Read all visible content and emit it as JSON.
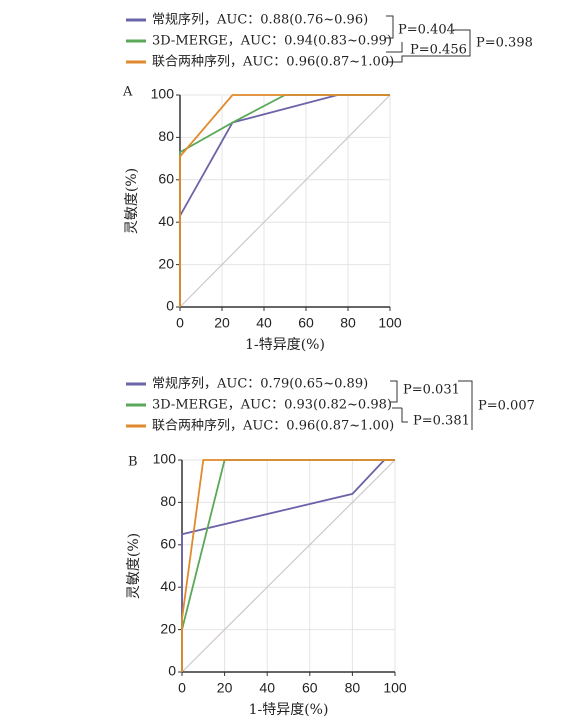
{
  "chart_data": [
    {
      "type": "line",
      "panel": "A",
      "xlabel": "1-特异度(%)",
      "ylabel": "灵敏度(%)",
      "xlim": [
        0,
        100
      ],
      "ylim": [
        0,
        100
      ],
      "xticks": [
        0,
        20,
        40,
        60,
        80,
        100
      ],
      "yticks": [
        0,
        20,
        40,
        60,
        80,
        100
      ],
      "grid": true,
      "series": [
        {
          "name": "常规序列，AUC：0.88(0.76~0.96)",
          "color": "#6b63a8",
          "x": [
            0,
            0,
            25,
            75,
            100
          ],
          "values": [
            0,
            43,
            87,
            100,
            100
          ]
        },
        {
          "name": "3D-MERGE，AUC：0.94(0.83~0.99)",
          "color": "#5aa858",
          "x": [
            0,
            0,
            25,
            50,
            100
          ],
          "values": [
            0,
            73,
            87,
            100,
            100
          ]
        },
        {
          "name": "联合两种序列，AUC：0.96(0.87~1.00)",
          "color": "#e08a2c",
          "x": [
            0,
            0,
            25,
            100
          ],
          "values": [
            0,
            71,
            100,
            100
          ]
        }
      ],
      "annotations": [
        "P=0.404",
        "P=0.456",
        "P=0.398"
      ]
    },
    {
      "type": "line",
      "panel": "B",
      "xlabel": "1-特异度(%)",
      "ylabel": "灵敏度(%)",
      "xlim": [
        0,
        100
      ],
      "ylim": [
        0,
        100
      ],
      "xticks": [
        0,
        20,
        40,
        60,
        80,
        100
      ],
      "yticks": [
        0,
        20,
        40,
        60,
        80,
        100
      ],
      "grid": true,
      "series": [
        {
          "name": "常规序列，AUC：0.79(0.65~0.89)",
          "color": "#6b63a8",
          "x": [
            0,
            0,
            80,
            95,
            100
          ],
          "values": [
            0,
            65,
            84,
            100,
            100
          ]
        },
        {
          "name": "3D-MERGE，AUC：0.93(0.82~0.98)",
          "color": "#5aa858",
          "x": [
            0,
            0,
            20,
            100
          ],
          "values": [
            0,
            20,
            100,
            100
          ]
        },
        {
          "name": "联合两种序列，AUC：0.96(0.87~1.00)",
          "color": "#e08a2c",
          "x": [
            0,
            0,
            10,
            100
          ],
          "values": [
            0,
            25,
            100,
            100
          ]
        }
      ],
      "annotations": [
        "P=0.031",
        "P=0.381",
        "P=0.007"
      ]
    }
  ]
}
